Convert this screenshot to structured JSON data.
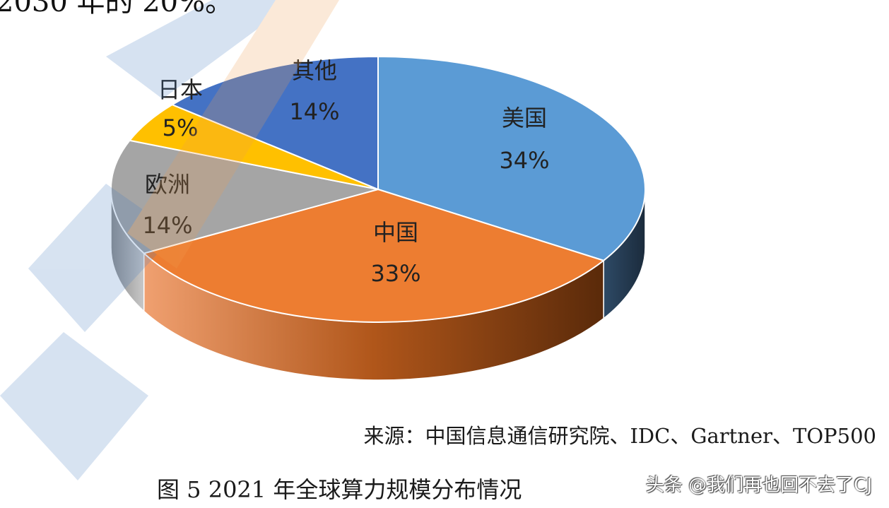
{
  "page": {
    "top_text": "2030 年的 20%。",
    "source": "来源：中国信息通信研究院、IDC、Gartner、TOP500",
    "caption": "图 5 2021 年全球算力规模分布情况",
    "credit": "头条 @我们再也回不去了CJ"
  },
  "chart_data": {
    "type": "pie",
    "title": "",
    "slices": [
      {
        "label": "美国",
        "value": 34,
        "value_label": "34%",
        "color": "#5b9bd5"
      },
      {
        "label": "中国",
        "value": 33,
        "value_label": "33%",
        "color": "#ed7d31"
      },
      {
        "label": "欧洲",
        "value": 14,
        "value_label": "14%",
        "color": "#a5a5a5"
      },
      {
        "label": "日本",
        "value": 5,
        "value_label": "5%",
        "color": "#ffc000"
      },
      {
        "label": "其他",
        "value": 14,
        "value_label": "14%",
        "color": "#4472c4"
      }
    ],
    "legend": "none"
  }
}
